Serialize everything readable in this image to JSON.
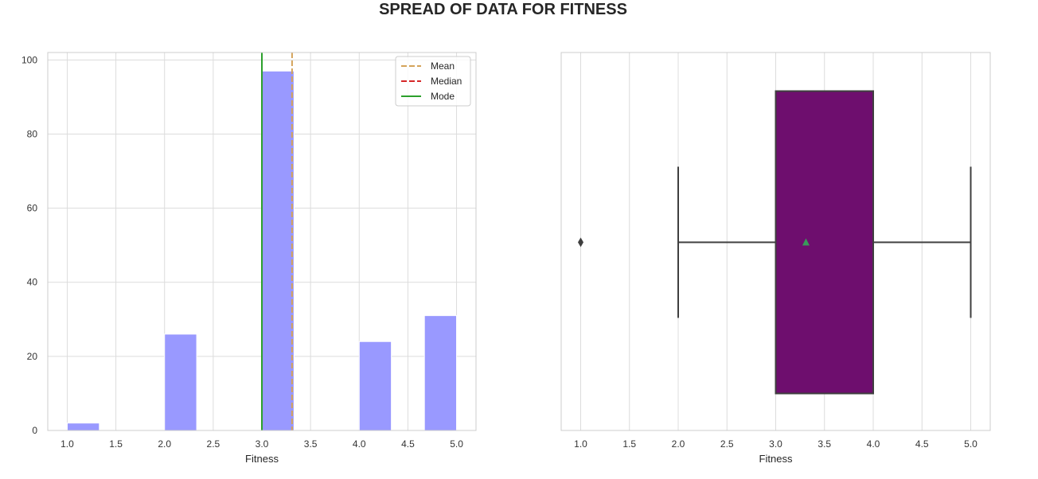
{
  "suptitle": "SPREAD OF DATA FOR FITNESS",
  "chart_data": [
    {
      "type": "bar",
      "subtype": "histogram",
      "xlabel": "Fitness",
      "ylabel": "",
      "xlim": [
        0.8,
        5.2
      ],
      "ylim": [
        0,
        102
      ],
      "xticks": [
        1.0,
        1.5,
        2.0,
        2.5,
        3.0,
        3.5,
        4.0,
        4.5,
        5.0
      ],
      "yticks": [
        0,
        20,
        40,
        60,
        80,
        100
      ],
      "grid": true,
      "bar_color": "#9999ff",
      "bins": [
        {
          "x0": 1.0,
          "x1": 1.33,
          "count": 2
        },
        {
          "x0": 2.0,
          "x1": 2.33,
          "count": 26
        },
        {
          "x0": 3.0,
          "x1": 3.33,
          "count": 97
        },
        {
          "x0": 4.0,
          "x1": 4.33,
          "count": 24
        },
        {
          "x0": 4.67,
          "x1": 5.0,
          "count": 31
        }
      ],
      "reference_lines": [
        {
          "name": "Mean",
          "x": 3.31,
          "style": "dashed",
          "color": "#d4a35a"
        },
        {
          "name": "Median",
          "x": 3.0,
          "style": "dashed",
          "color": "#d62728"
        },
        {
          "name": "Mode",
          "x": 3.0,
          "style": "solid",
          "color": "#2ca02c"
        }
      ],
      "legend_placement": "top-right"
    },
    {
      "type": "boxplot",
      "xlabel": "Fitness",
      "xlim": [
        0.8,
        5.2
      ],
      "xticks": [
        1.0,
        1.5,
        2.0,
        2.5,
        3.0,
        3.5,
        4.0,
        4.5,
        5.0
      ],
      "grid": true,
      "box_color": "#6e0e6e",
      "whisker_low": 2.0,
      "q1": 3.0,
      "median": 3.0,
      "q3": 4.0,
      "whisker_high": 5.0,
      "mean": 3.31,
      "outliers": [
        1.0
      ],
      "mean_marker_color": "#3a9a5a"
    }
  ]
}
